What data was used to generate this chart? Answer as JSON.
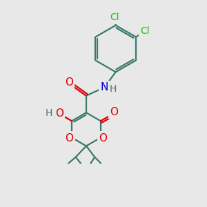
{
  "bg_color": "#e8e8e8",
  "bond_color": "#3a7a6a",
  "bond_width": 1.6,
  "atom_colors": {
    "O": "#dd0000",
    "N": "#0000cc",
    "Cl": "#22bb22",
    "C_text": "#3a7a6a",
    "H_text": "#3a7a6a"
  },
  "font_size_atom": 11,
  "font_size_cl": 10,
  "font_size_h": 10,
  "font_size_me": 9
}
